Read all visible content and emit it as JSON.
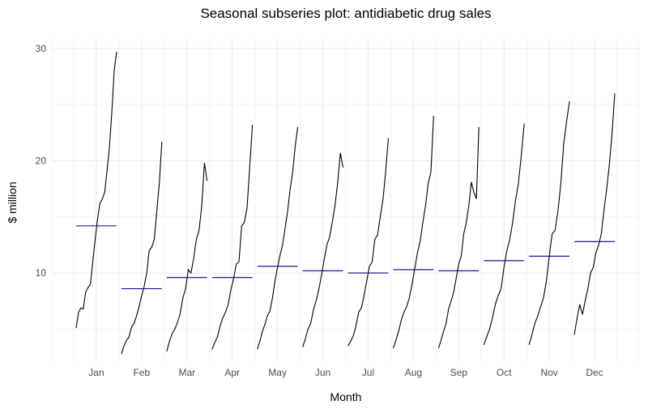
{
  "chart_data": {
    "type": "line",
    "title": "Seasonal subseries plot: antidiabetic drug sales",
    "xlabel": "Month",
    "ylabel": "$ million",
    "ylim": [
      2.0,
      31.0
    ],
    "yticks": [
      10,
      20,
      30
    ],
    "grid": true,
    "legend": "none",
    "mean_color": "#00008b",
    "line_color": "#000000",
    "months": [
      {
        "label": "Jan",
        "mean": 14.2,
        "values": [
          5.1,
          6.5,
          6.9,
          6.8,
          8.3,
          8.7,
          9.0,
          11.0,
          13.0,
          14.8,
          16.2,
          16.6,
          17.2,
          19.1,
          21.2,
          24.3,
          28.0,
          29.7
        ]
      },
      {
        "label": "Feb",
        "mean": 8.6,
        "values": [
          2.8,
          3.5,
          4.0,
          4.3,
          5.2,
          5.5,
          6.2,
          7.0,
          8.0,
          8.8,
          10.0,
          12.0,
          12.3,
          13.0,
          15.5,
          18.0,
          21.7
        ]
      },
      {
        "label": "Mar",
        "mean": 9.6,
        "values": [
          3.0,
          3.9,
          4.6,
          5.0,
          5.6,
          6.4,
          7.8,
          8.6,
          10.3,
          10.0,
          11.3,
          13.0,
          13.8,
          16.0,
          19.8,
          18.2
        ]
      },
      {
        "label": "Apr",
        "mean": 9.6,
        "values": [
          3.2,
          3.8,
          4.3,
          5.3,
          6.0,
          6.5,
          7.2,
          8.5,
          9.5,
          10.8,
          11.0,
          14.2,
          14.5,
          15.8,
          19.5,
          23.2
        ]
      },
      {
        "label": "May",
        "mean": 10.6,
        "values": [
          3.2,
          3.9,
          4.8,
          5.4,
          6.2,
          6.6,
          7.8,
          9.3,
          10.5,
          11.6,
          12.5,
          14.0,
          15.5,
          17.5,
          19.0,
          21.3,
          23.0
        ]
      },
      {
        "label": "Jun",
        "mean": 10.2,
        "values": [
          3.4,
          4.1,
          5.0,
          5.5,
          6.7,
          7.5,
          8.5,
          9.8,
          11.2,
          12.5,
          13.2,
          14.5,
          16.0,
          18.0,
          20.7,
          19.4
        ]
      },
      {
        "label": "Jul",
        "mean": 10.0,
        "values": [
          3.5,
          3.9,
          4.4,
          5.3,
          6.5,
          6.9,
          8.0,
          9.3,
          10.6,
          11.0,
          13.0,
          13.4,
          15.0,
          16.5,
          19.0,
          22.0
        ]
      },
      {
        "label": "Aug",
        "mean": 10.3,
        "values": [
          3.3,
          4.0,
          4.8,
          5.8,
          6.5,
          7.0,
          7.8,
          9.0,
          10.4,
          11.8,
          12.8,
          14.5,
          16.0,
          18.0,
          19.0,
          24.0
        ]
      },
      {
        "label": "Sep",
        "mean": 10.2,
        "values": [
          3.3,
          4.0,
          4.8,
          5.5,
          6.8,
          7.5,
          8.3,
          9.5,
          10.8,
          11.5,
          13.5,
          14.5,
          16.0,
          18.1,
          17.2,
          16.6,
          23.0
        ]
      },
      {
        "label": "Oct",
        "mean": 11.1,
        "values": [
          3.6,
          4.3,
          5.0,
          6.0,
          7.2,
          8.0,
          8.6,
          10.5,
          12.0,
          13.0,
          14.5,
          16.5,
          18.0,
          20.5,
          23.3
        ]
      },
      {
        "label": "Nov",
        "mean": 11.5,
        "values": [
          3.6,
          4.5,
          5.5,
          6.2,
          7.0,
          7.8,
          9.3,
          11.5,
          13.5,
          13.8,
          15.5,
          18.0,
          21.5,
          23.5,
          25.3
        ]
      },
      {
        "label": "Dec",
        "mean": 12.8,
        "values": [
          4.5,
          6.0,
          7.2,
          6.3,
          7.5,
          8.6,
          10.0,
          10.5,
          11.8,
          12.5,
          13.5,
          15.6,
          17.5,
          19.7,
          22.5,
          26.0
        ]
      }
    ]
  }
}
